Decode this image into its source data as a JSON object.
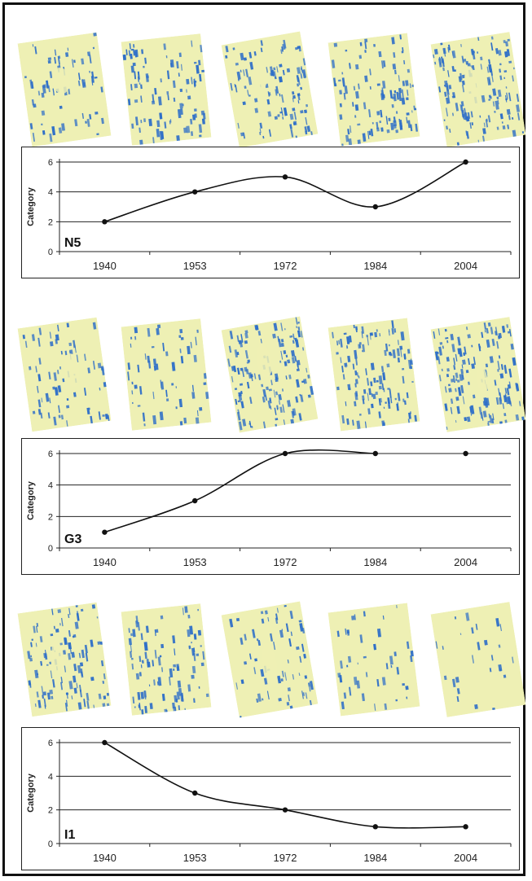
{
  "colors": {
    "tile_base": "#eef0b4",
    "tile_ink": "#2f6fc8",
    "line": "#111111",
    "grid": "#222222"
  },
  "chart_data": [
    {
      "type": "line",
      "series_label": "N5",
      "ylabel": "Category",
      "categories": [
        "1940",
        "1953",
        "1972",
        "1984",
        "2004"
      ],
      "values": [
        2,
        4,
        5,
        3,
        6
      ],
      "ylim": [
        0,
        6
      ],
      "yticks": [
        "0",
        "2",
        "4",
        "6"
      ],
      "grid": true,
      "smooth": true,
      "image_density": [
        0.38,
        0.55,
        0.6,
        0.62,
        0.8
      ]
    },
    {
      "type": "line",
      "series_label": "G3",
      "ylabel": "Category",
      "categories": [
        "1940",
        "1953",
        "1972",
        "1984",
        "2004"
      ],
      "values": [
        1,
        3,
        6,
        6,
        6
      ],
      "ylim": [
        0,
        6
      ],
      "yticks": [
        "0",
        "2",
        "4",
        "6"
      ],
      "grid": true,
      "smooth": true,
      "connected_points": 4,
      "image_density": [
        0.4,
        0.35,
        0.78,
        0.74,
        0.82
      ]
    },
    {
      "type": "line",
      "series_label": "I1",
      "ylabel": "Category",
      "categories": [
        "1940",
        "1953",
        "1972",
        "1984",
        "2004"
      ],
      "values": [
        6,
        3,
        2,
        1,
        1
      ],
      "ylim": [
        0,
        6
      ],
      "yticks": [
        "0",
        "2",
        "4",
        "6"
      ],
      "grid": true,
      "smooth": true,
      "image_density": [
        0.62,
        0.55,
        0.38,
        0.25,
        0.15
      ]
    }
  ]
}
